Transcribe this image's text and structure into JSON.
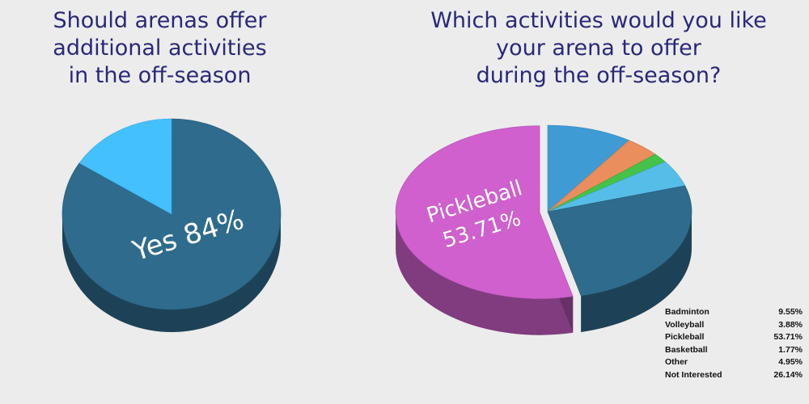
{
  "titles": {
    "left": "Should arenas offer\nadditional activities\n in the off-season",
    "right": "Which activities would you like\nyour arena to offer\nduring the off-season?"
  },
  "colors": {
    "background": "#ececec",
    "title": "#2a2878",
    "yes": "#2e6b8c",
    "no": "#45c0ff",
    "badminton": "#3e9bd4",
    "volleyball": "#e98e5c",
    "basketball": "#44c24a",
    "other": "#56bde9",
    "not_interested": "#2e6b8c",
    "pickleball": "#cf60cd"
  },
  "labels": {
    "yes": "Yes 84%",
    "pickleball_name": "Pickleball",
    "pickleball_value": "53.71%"
  },
  "chart_data": [
    {
      "type": "pie",
      "title": "Should arenas offer additional activities in the off-season",
      "slices": [
        {
          "label": "Yes",
          "value": 84,
          "color": "#2e6b8c"
        },
        {
          "label": "",
          "value": 16,
          "color": "#45c0ff"
        }
      ]
    },
    {
      "type": "pie",
      "title": "Which activities would you like your arena to offer during the off-season?",
      "slices": [
        {
          "label": "Badminton",
          "value": 9.55,
          "display": "9.55%",
          "color": "#3e9bd4"
        },
        {
          "label": "Volleyball",
          "value": 3.88,
          "display": "3.88%",
          "color": "#e98e5c"
        },
        {
          "label": "Basketball",
          "value": 1.77,
          "display": "1.77%",
          "color": "#44c24a"
        },
        {
          "label": "Other",
          "value": 4.95,
          "display": "4.95%",
          "color": "#56bde9"
        },
        {
          "label": "Not Interested",
          "value": 26.14,
          "display": "26.14%",
          "color": "#2e6b8c"
        },
        {
          "label": "Pickleball",
          "value": 53.71,
          "display": "53.71%",
          "color": "#cf60cd"
        }
      ],
      "legend": [
        {
          "label": "Badminton",
          "value": "9.55%"
        },
        {
          "label": "Volleyball",
          "value": "3.88%"
        },
        {
          "label": "Pickleball",
          "value": "53.71%"
        },
        {
          "label": "Basketball",
          "value": "1.77%"
        },
        {
          "label": "Other",
          "value": "4.95%"
        },
        {
          "label": "Not Interested",
          "value": "26.14%"
        }
      ],
      "legend_position": "bottom-right"
    }
  ]
}
